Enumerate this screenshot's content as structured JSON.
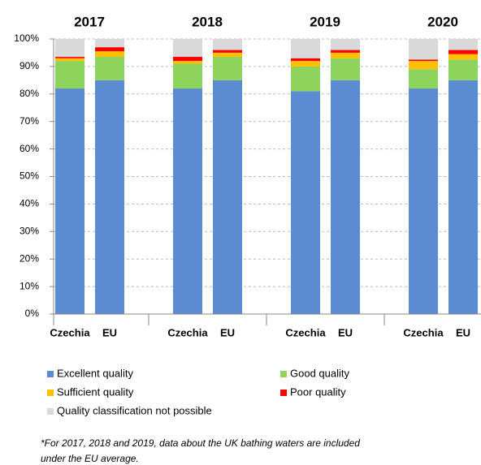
{
  "chart_data": {
    "type": "stacked_bar",
    "groups": [
      "2017",
      "2018",
      "2019",
      "2020"
    ],
    "categories": [
      "Czechia",
      "EU",
      "Czechia",
      "EU",
      "Czechia",
      "EU",
      "Czechia",
      "EU"
    ],
    "series": [
      {
        "name": "Excellent quality",
        "color": "#5b8bd0",
        "values": [
          82,
          85,
          82,
          85,
          81,
          85,
          82,
          85
        ]
      },
      {
        "name": "Good quality",
        "color": "#8dd35c",
        "values": [
          10,
          8.5,
          9,
          8.5,
          9,
          8,
          7,
          7.5
        ]
      },
      {
        "name": "Sufficient quality",
        "color": "#ffc000",
        "values": [
          1,
          2,
          1,
          1.5,
          2,
          2,
          3,
          2
        ]
      },
      {
        "name": "Poor quality",
        "color": "#ff0000",
        "values": [
          0.5,
          1.5,
          1.5,
          1,
          1,
          1,
          0.5,
          1.5
        ]
      },
      {
        "name": "Quality classification not possible",
        "color": "#d9d9d9",
        "values": [
          6.5,
          3,
          6.5,
          4,
          7,
          4,
          7.5,
          4
        ]
      }
    ],
    "ylim": [
      0,
      100
    ],
    "yticks": [
      {
        "value": 0,
        "label": "0%"
      },
      {
        "value": 10,
        "label": "10%"
      },
      {
        "value": 20,
        "label": "20%"
      },
      {
        "value": 30,
        "label": "30%"
      },
      {
        "value": 40,
        "label": "40%"
      },
      {
        "value": 50,
        "label": "50%"
      },
      {
        "value": 60,
        "label": "60%"
      },
      {
        "value": 70,
        "label": "70%"
      },
      {
        "value": 80,
        "label": "80%"
      },
      {
        "value": 90,
        "label": "90%"
      },
      {
        "value": 100,
        "label": "100%"
      }
    ],
    "grid": true,
    "footnote": [
      "*For 2017, 2018 and 2019, data about the UK bathing waters are included",
      "under the EU average."
    ]
  }
}
